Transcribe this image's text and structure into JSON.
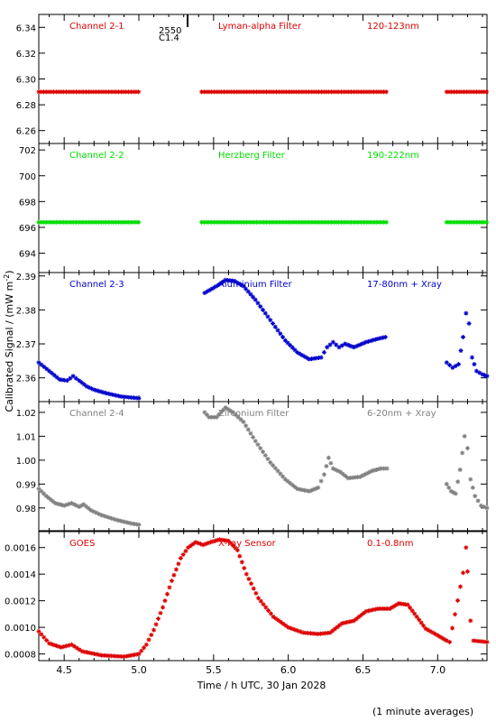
{
  "figure": {
    "ylabel": "Calibrated Signal / (mW m",
    "ylabel_sup": "-2",
    "ylabel_end": ")",
    "xlabel": "Time / h UTC, 30 Jan 2028",
    "footnote": "(1 minute averages)",
    "annotation_line1": "2550",
    "annotation_line2": "C1.4"
  },
  "colors": {
    "red": "#dd0000",
    "green": "#00dd00",
    "blue": "#0000cc",
    "grey": "#808080",
    "frame": "#000000"
  },
  "chart_data": [
    {
      "type": "scatter",
      "label_left": "Channel 2-1",
      "label_mid": "Lyman-alpha Filter",
      "label_right": "120-123nm",
      "color": "red",
      "xlim": [
        4.33,
        7.33
      ],
      "ylim": [
        6.25,
        6.35
      ],
      "xticks": [
        4.5,
        5.0,
        5.5,
        6.0,
        6.5,
        7.0
      ],
      "yticks": [
        6.26,
        6.28,
        6.3,
        6.32,
        6.34
      ],
      "ytick_labels": [
        "6.26",
        "6.28",
        "6.30",
        "6.32",
        "6.34"
      ],
      "xtick_labels": [],
      "points": [
        [
          4.33,
          6.29
        ],
        [
          5.01,
          6.29
        ],
        [
          5.42,
          6.29
        ],
        [
          6.67,
          6.29
        ],
        [
          7.06,
          6.29
        ],
        [
          7.33,
          6.29
        ]
      ],
      "segments": [
        [
          4.33,
          5.01
        ],
        [
          5.42,
          6.67
        ],
        [
          7.06,
          7.33
        ]
      ]
    },
    {
      "type": "scatter",
      "label_left": "Channel 2-2",
      "label_mid": "Herzberg Filter",
      "label_right": "190-222nm",
      "color": "green",
      "xlim": [
        4.33,
        7.33
      ],
      "ylim": [
        692.5,
        702.5
      ],
      "xticks": [
        4.5,
        5.0,
        5.5,
        6.0,
        6.5,
        7.0
      ],
      "yticks": [
        694,
        696,
        698,
        700,
        702
      ],
      "ytick_labels": [
        "694",
        "696",
        "698",
        "700",
        "702"
      ],
      "xtick_labels": [],
      "points": [
        [
          4.33,
          696.4
        ],
        [
          5.01,
          696.4
        ],
        [
          5.42,
          696.4
        ],
        [
          6.67,
          696.4
        ],
        [
          7.06,
          696.4
        ],
        [
          7.33,
          696.4
        ]
      ],
      "segments": [
        [
          4.33,
          5.01
        ],
        [
          5.42,
          6.67
        ],
        [
          7.06,
          7.33
        ]
      ]
    },
    {
      "type": "scatter",
      "label_left": "Channel 2-3",
      "label_mid": "Aluminium Filter",
      "label_right": "17-80nm + Xray",
      "color": "blue",
      "xlim": [
        4.33,
        7.33
      ],
      "ylim": [
        2.353,
        2.391
      ],
      "xticks": [
        4.5,
        5.0,
        5.5,
        6.0,
        6.5,
        7.0
      ],
      "yticks": [
        2.36,
        2.37,
        2.38,
        2.39
      ],
      "ytick_labels": [
        "2.36",
        "2.37",
        "2.38",
        "2.39"
      ],
      "xtick_labels": [],
      "points": [
        [
          4.33,
          2.3645
        ],
        [
          4.4,
          2.362
        ],
        [
          4.47,
          2.3595
        ],
        [
          4.52,
          2.3592
        ],
        [
          4.56,
          2.3605
        ],
        [
          4.6,
          2.3592
        ],
        [
          4.65,
          2.3575
        ],
        [
          4.7,
          2.3565
        ],
        [
          4.78,
          2.3555
        ],
        [
          4.88,
          2.3545
        ],
        [
          4.95,
          2.3542
        ],
        [
          5.0,
          2.354
        ],
        [
          5.44,
          2.385
        ],
        [
          5.52,
          2.387
        ],
        [
          5.58,
          2.3888
        ],
        [
          5.64,
          2.3885
        ],
        [
          5.7,
          2.387
        ],
        [
          5.78,
          2.383
        ],
        [
          5.88,
          2.377
        ],
        [
          5.98,
          2.371
        ],
        [
          6.06,
          2.3675
        ],
        [
          6.14,
          2.3655
        ],
        [
          6.22,
          2.366
        ],
        [
          6.26,
          2.369
        ],
        [
          6.3,
          2.3705
        ],
        [
          6.34,
          2.369
        ],
        [
          6.38,
          2.37
        ],
        [
          6.44,
          2.369
        ],
        [
          6.52,
          2.3705
        ],
        [
          6.6,
          2.3715
        ],
        [
          6.65,
          2.372
        ],
        [
          7.06,
          2.3645
        ],
        [
          7.1,
          2.363
        ],
        [
          7.14,
          2.364
        ],
        [
          7.17,
          2.372
        ],
        [
          7.19,
          2.379
        ],
        [
          7.21,
          2.376
        ],
        [
          7.23,
          2.366
        ],
        [
          7.26,
          2.362
        ],
        [
          7.3,
          2.361
        ],
        [
          7.33,
          2.3605
        ]
      ],
      "segments": []
    },
    {
      "type": "scatter",
      "label_left": "Channel 2-4",
      "label_mid": "Zirconium Filter",
      "label_right": "6-20nm + Xray",
      "color": "grey",
      "xlim": [
        4.33,
        7.33
      ],
      "ylim": [
        0.9705,
        1.0245
      ],
      "xticks": [
        4.5,
        5.0,
        5.5,
        6.0,
        6.5,
        7.0
      ],
      "yticks": [
        0.98,
        0.99,
        1.0,
        1.01,
        1.02
      ],
      "ytick_labels": [
        "0.98",
        "0.99",
        "1.00",
        "1.01",
        "1.02"
      ],
      "xtick_labels": [],
      "points": [
        [
          4.33,
          0.988
        ],
        [
          4.38,
          0.985
        ],
        [
          4.44,
          0.982
        ],
        [
          4.5,
          0.981
        ],
        [
          4.55,
          0.982
        ],
        [
          4.6,
          0.9805
        ],
        [
          4.63,
          0.9815
        ],
        [
          4.68,
          0.979
        ],
        [
          4.75,
          0.977
        ],
        [
          4.85,
          0.975
        ],
        [
          4.95,
          0.9735
        ],
        [
          5.0,
          0.973
        ],
        [
          5.44,
          1.02
        ],
        [
          5.47,
          1.018
        ],
        [
          5.52,
          1.018
        ],
        [
          5.58,
          1.022
        ],
        [
          5.63,
          1.02
        ],
        [
          5.7,
          1.016
        ],
        [
          5.78,
          1.008
        ],
        [
          5.88,
          0.999
        ],
        [
          5.98,
          0.992
        ],
        [
          6.06,
          0.988
        ],
        [
          6.14,
          0.987
        ],
        [
          6.2,
          0.9885
        ],
        [
          6.24,
          0.994
        ],
        [
          6.27,
          1.001
        ],
        [
          6.3,
          0.9965
        ],
        [
          6.35,
          0.995
        ],
        [
          6.4,
          0.9925
        ],
        [
          6.48,
          0.993
        ],
        [
          6.56,
          0.9955
        ],
        [
          6.62,
          0.9965
        ],
        [
          6.66,
          0.9965
        ],
        [
          7.06,
          0.99
        ],
        [
          7.09,
          0.987
        ],
        [
          7.12,
          0.986
        ],
        [
          7.15,
          0.996
        ],
        [
          7.18,
          1.01
        ],
        [
          7.2,
          1.005
        ],
        [
          7.22,
          0.992
        ],
        [
          7.25,
          0.985
        ],
        [
          7.29,
          0.981
        ],
        [
          7.33,
          0.98
        ]
      ],
      "segments": []
    },
    {
      "type": "scatter",
      "label_left": "GOES",
      "label_mid": "X-ray Sensor",
      "label_right": "0.1-0.8nm",
      "color": "red",
      "xlim": [
        4.33,
        7.33
      ],
      "ylim": [
        0.00075,
        0.00172
      ],
      "xticks": [
        4.5,
        5.0,
        5.5,
        6.0,
        6.5,
        7.0
      ],
      "yticks": [
        0.0008,
        0.001,
        0.0012,
        0.0014,
        0.0016
      ],
      "ytick_labels": [
        "0.0008",
        "0.0010",
        "0.0012",
        "0.0014",
        "0.0016"
      ],
      "xtick_labels": [
        "4.5",
        "5.0",
        "5.5",
        "6.0",
        "6.5",
        "7.0"
      ],
      "points": [
        [
          4.33,
          0.00097
        ],
        [
          4.4,
          0.00088
        ],
        [
          4.48,
          0.00085
        ],
        [
          4.55,
          0.00087
        ],
        [
          4.62,
          0.00082
        ],
        [
          4.75,
          0.00079
        ],
        [
          4.9,
          0.00078
        ],
        [
          5.0,
          0.0008
        ],
        [
          5.05,
          0.00087
        ],
        [
          5.1,
          0.00098
        ],
        [
          5.16,
          0.00115
        ],
        [
          5.22,
          0.00135
        ],
        [
          5.28,
          0.00152
        ],
        [
          5.33,
          0.0016
        ],
        [
          5.38,
          0.00164
        ],
        [
          5.43,
          0.00162
        ],
        [
          5.48,
          0.00164
        ],
        [
          5.54,
          0.00166
        ],
        [
          5.6,
          0.00165
        ],
        [
          5.66,
          0.00158
        ],
        [
          5.72,
          0.0014
        ],
        [
          5.8,
          0.00122
        ],
        [
          5.9,
          0.00108
        ],
        [
          6.0,
          0.001
        ],
        [
          6.1,
          0.00096
        ],
        [
          6.2,
          0.00095
        ],
        [
          6.28,
          0.00096
        ],
        [
          6.36,
          0.00103
        ],
        [
          6.44,
          0.00105
        ],
        [
          6.52,
          0.00112
        ],
        [
          6.6,
          0.00114
        ],
        [
          6.68,
          0.00114
        ],
        [
          6.74,
          0.00118
        ],
        [
          6.8,
          0.00117
        ],
        [
          6.86,
          0.00108
        ],
        [
          6.92,
          0.00099
        ],
        [
          7.0,
          0.00094
        ],
        [
          7.06,
          0.0009
        ],
        [
          7.08,
          0.00089
        ],
        [
          7.17,
          0.00141
        ],
        [
          7.19,
          0.0016
        ],
        [
          7.2,
          0.00142
        ],
        [
          7.22,
          0.00105
        ],
        [
          7.24,
          0.0009
        ],
        [
          7.33,
          0.00089
        ]
      ],
      "segments": []
    }
  ]
}
